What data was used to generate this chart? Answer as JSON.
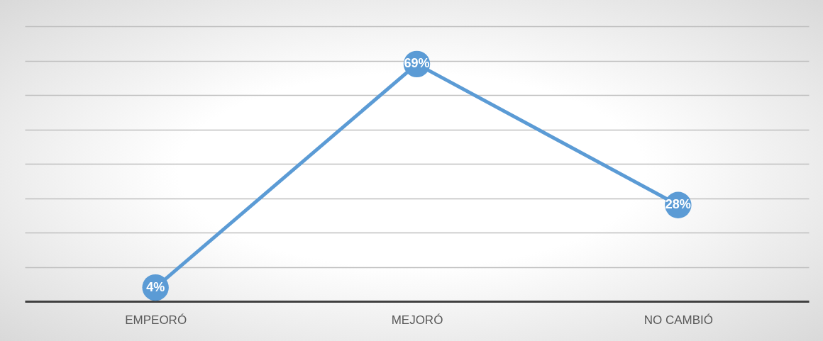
{
  "chart_data": {
    "type": "line",
    "categories": [
      "EMPEORÓ",
      "MEJORÓ",
      "NO CAMBIÓ"
    ],
    "series": [
      {
        "color": "#5b9bd5",
        "values": [
          4,
          69,
          28
        ],
        "value_labels": [
          "4%",
          "69%",
          "28%"
        ]
      }
    ],
    "ylim": [
      0,
      80
    ],
    "yticks": [
      {
        "value": 0,
        "label": null
      },
      {
        "value": 10,
        "label": null
      },
      {
        "value": 20,
        "label": null
      },
      {
        "value": 30,
        "label": null
      },
      {
        "value": 40,
        "label": null
      },
      {
        "value": 50,
        "label": null
      },
      {
        "value": 60,
        "label": null
      },
      {
        "value": 70,
        "label": null
      },
      {
        "value": 80,
        "label": null
      }
    ],
    "grid": "y",
    "tick_labels": "x",
    "marker": "circle"
  }
}
